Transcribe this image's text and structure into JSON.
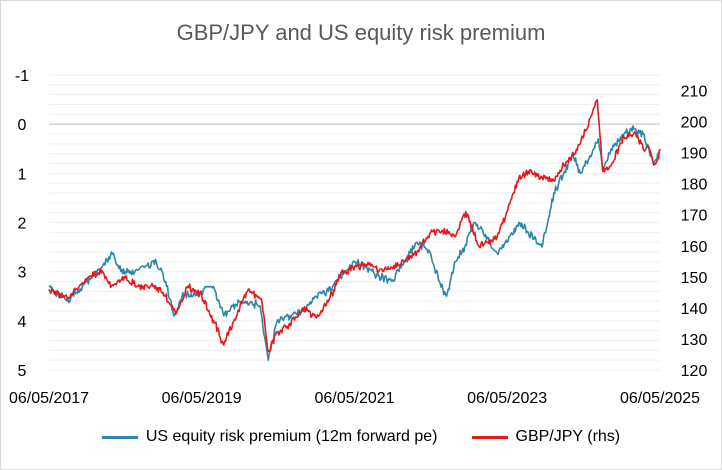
{
  "chart_data": {
    "type": "line",
    "title": "GBP/JPY and US equity risk premium",
    "x_tick_labels": [
      "06/05/2017",
      "06/05/2019",
      "06/05/2021",
      "06/05/2023",
      "06/05/2025"
    ],
    "x_range": [
      "2017-05-06",
      "2025-05-06"
    ],
    "left_axis": {
      "ticks": [
        "-1",
        "0",
        "1",
        "2",
        "3",
        "4",
        "5"
      ],
      "range": [
        -1,
        5
      ],
      "inverted": true
    },
    "right_axis": {
      "ticks": [
        "120",
        "130",
        "140",
        "150",
        "160",
        "170",
        "180",
        "190",
        "200",
        "210"
      ],
      "range": [
        120,
        215
      ]
    },
    "grid": true,
    "legend_position": "bottom",
    "series": [
      {
        "name": "US equity risk premium (12m forward pe)",
        "axis": "left",
        "color": "#2E86AB",
        "points": [
          [
            "2017-05-06",
            3.3
          ],
          [
            "2017-08-01",
            3.6
          ],
          [
            "2017-11-01",
            3.2
          ],
          [
            "2018-01-15",
            2.9
          ],
          [
            "2018-03-01",
            2.6
          ],
          [
            "2018-04-15",
            3.0
          ],
          [
            "2018-06-01",
            3.0
          ],
          [
            "2018-08-01",
            2.9
          ],
          [
            "2018-10-01",
            2.8
          ],
          [
            "2018-11-15",
            3.2
          ],
          [
            "2018-12-24",
            3.9
          ],
          [
            "2019-02-01",
            3.5
          ],
          [
            "2019-05-06",
            3.4
          ],
          [
            "2019-07-01",
            3.3
          ],
          [
            "2019-08-20",
            3.9
          ],
          [
            "2019-10-01",
            3.7
          ],
          [
            "2019-12-01",
            3.6
          ],
          [
            "2020-02-10",
            3.7
          ],
          [
            "2020-03-20",
            4.8
          ],
          [
            "2020-05-01",
            4.0
          ],
          [
            "2020-07-01",
            3.9
          ],
          [
            "2020-09-01",
            3.8
          ],
          [
            "2020-11-01",
            3.5
          ],
          [
            "2021-01-01",
            3.4
          ],
          [
            "2021-03-01",
            3.1
          ],
          [
            "2021-05-06",
            2.8
          ],
          [
            "2021-07-01",
            2.9
          ],
          [
            "2021-09-01",
            3.1
          ],
          [
            "2021-11-01",
            3.2
          ],
          [
            "2022-01-01",
            2.8
          ],
          [
            "2022-03-01",
            2.4
          ],
          [
            "2022-05-01",
            2.6
          ],
          [
            "2022-06-15",
            3.2
          ],
          [
            "2022-07-20",
            3.5
          ],
          [
            "2022-09-01",
            2.8
          ],
          [
            "2022-10-15",
            2.5
          ],
          [
            "2022-12-01",
            2.0
          ],
          [
            "2023-02-01",
            2.3
          ],
          [
            "2023-03-15",
            2.6
          ],
          [
            "2023-05-06",
            2.4
          ],
          [
            "2023-07-01",
            2.0
          ],
          [
            "2023-08-15",
            2.2
          ],
          [
            "2023-10-20",
            2.5
          ],
          [
            "2023-12-15",
            1.4
          ],
          [
            "2024-02-01",
            1.0
          ],
          [
            "2024-03-15",
            0.6
          ],
          [
            "2024-04-20",
            1.0
          ],
          [
            "2024-06-01",
            0.7
          ],
          [
            "2024-07-15",
            0.3
          ],
          [
            "2024-08-05",
            0.9
          ],
          [
            "2024-09-15",
            0.5
          ],
          [
            "2024-11-15",
            0.2
          ],
          [
            "2025-01-01",
            0.1
          ],
          [
            "2025-02-15",
            0.2
          ],
          [
            "2025-04-07",
            0.8
          ],
          [
            "2025-04-25",
            0.6
          ],
          [
            "2025-05-06",
            0.5
          ]
        ]
      },
      {
        "name": "GBP/JPY (rhs)",
        "axis": "right",
        "color": "#E31A1C",
        "points": [
          [
            "2017-05-06",
            146
          ],
          [
            "2017-08-01",
            143
          ],
          [
            "2017-11-01",
            149
          ],
          [
            "2018-01-15",
            152
          ],
          [
            "2018-03-01",
            147
          ],
          [
            "2018-05-01",
            150
          ],
          [
            "2018-07-01",
            147
          ],
          [
            "2018-09-15",
            147
          ],
          [
            "2018-11-01",
            145
          ],
          [
            "2019-01-03",
            138
          ],
          [
            "2019-03-01",
            147
          ],
          [
            "2019-05-06",
            144
          ],
          [
            "2019-07-01",
            136
          ],
          [
            "2019-08-20",
            128
          ],
          [
            "2019-10-01",
            135
          ],
          [
            "2019-12-15",
            146
          ],
          [
            "2020-02-15",
            143
          ],
          [
            "2020-03-20",
            126
          ],
          [
            "2020-05-01",
            132
          ],
          [
            "2020-07-01",
            135
          ],
          [
            "2020-09-01",
            140
          ],
          [
            "2020-11-01",
            137
          ],
          [
            "2021-01-01",
            142
          ],
          [
            "2021-03-01",
            151
          ],
          [
            "2021-05-06",
            153
          ],
          [
            "2021-07-01",
            154
          ],
          [
            "2021-09-01",
            152
          ],
          [
            "2021-11-01",
            153
          ],
          [
            "2022-01-01",
            155
          ],
          [
            "2022-03-01",
            158
          ],
          [
            "2022-05-01",
            164
          ],
          [
            "2022-07-01",
            165
          ],
          [
            "2022-09-01",
            163
          ],
          [
            "2022-10-20",
            171
          ],
          [
            "2022-12-20",
            160
          ],
          [
            "2023-02-01",
            161
          ],
          [
            "2023-03-15",
            162
          ],
          [
            "2023-05-06",
            171
          ],
          [
            "2023-07-01",
            182
          ],
          [
            "2023-08-15",
            184
          ],
          [
            "2023-10-20",
            182
          ],
          [
            "2023-12-15",
            181
          ],
          [
            "2024-02-01",
            186
          ],
          [
            "2024-04-01",
            191
          ],
          [
            "2024-05-15",
            197
          ],
          [
            "2024-07-10",
            207
          ],
          [
            "2024-08-05",
            184
          ],
          [
            "2024-09-15",
            186
          ],
          [
            "2024-11-15",
            195
          ],
          [
            "2025-01-10",
            196
          ],
          [
            "2025-02-15",
            191
          ],
          [
            "2025-03-10",
            192
          ],
          [
            "2025-04-07",
            186
          ],
          [
            "2025-04-25",
            188
          ],
          [
            "2025-05-06",
            191
          ]
        ]
      }
    ]
  }
}
